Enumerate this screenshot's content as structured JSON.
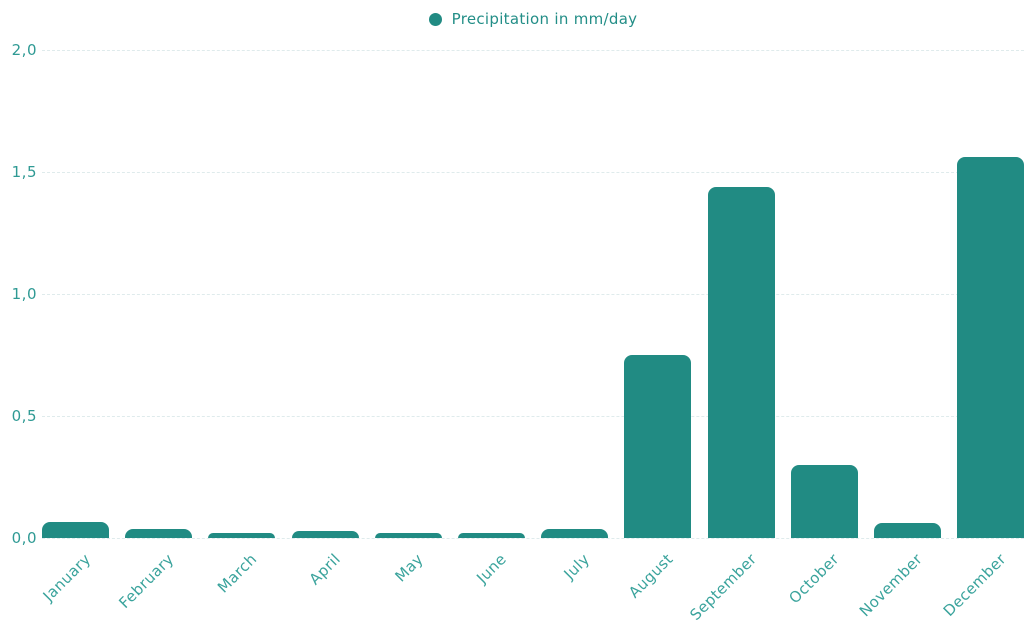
{
  "chart_data": {
    "type": "bar",
    "title": "",
    "legend_label": "Precipitation in mm/day",
    "legend_position": "top-center",
    "categories": [
      "January",
      "February",
      "March",
      "April",
      "May",
      "June",
      "July",
      "August",
      "September",
      "October",
      "November",
      "December"
    ],
    "values": [
      0.065,
      0.035,
      0.02,
      0.03,
      0.02,
      0.02,
      0.035,
      0.75,
      1.44,
      0.3,
      0.06,
      1.56
    ],
    "xlabel": "",
    "ylabel": "",
    "ylim": [
      0,
      2
    ],
    "grid": true,
    "decimal_separator": ",",
    "yticks": [
      {
        "value": 0,
        "label": "0,0"
      },
      {
        "value": 0.5,
        "label": "0,5"
      },
      {
        "value": 1,
        "label": "1,0"
      },
      {
        "value": 1.5,
        "label": "1,5"
      },
      {
        "value": 2,
        "label": "2,0"
      }
    ],
    "colors": {
      "bar": "#218b83",
      "legend_text": "#238e87",
      "y_tick_label": "#2f9a94",
      "x_tick_label": "#3aa39c",
      "gridline": "#dfebec",
      "background": "#ffffff"
    }
  }
}
